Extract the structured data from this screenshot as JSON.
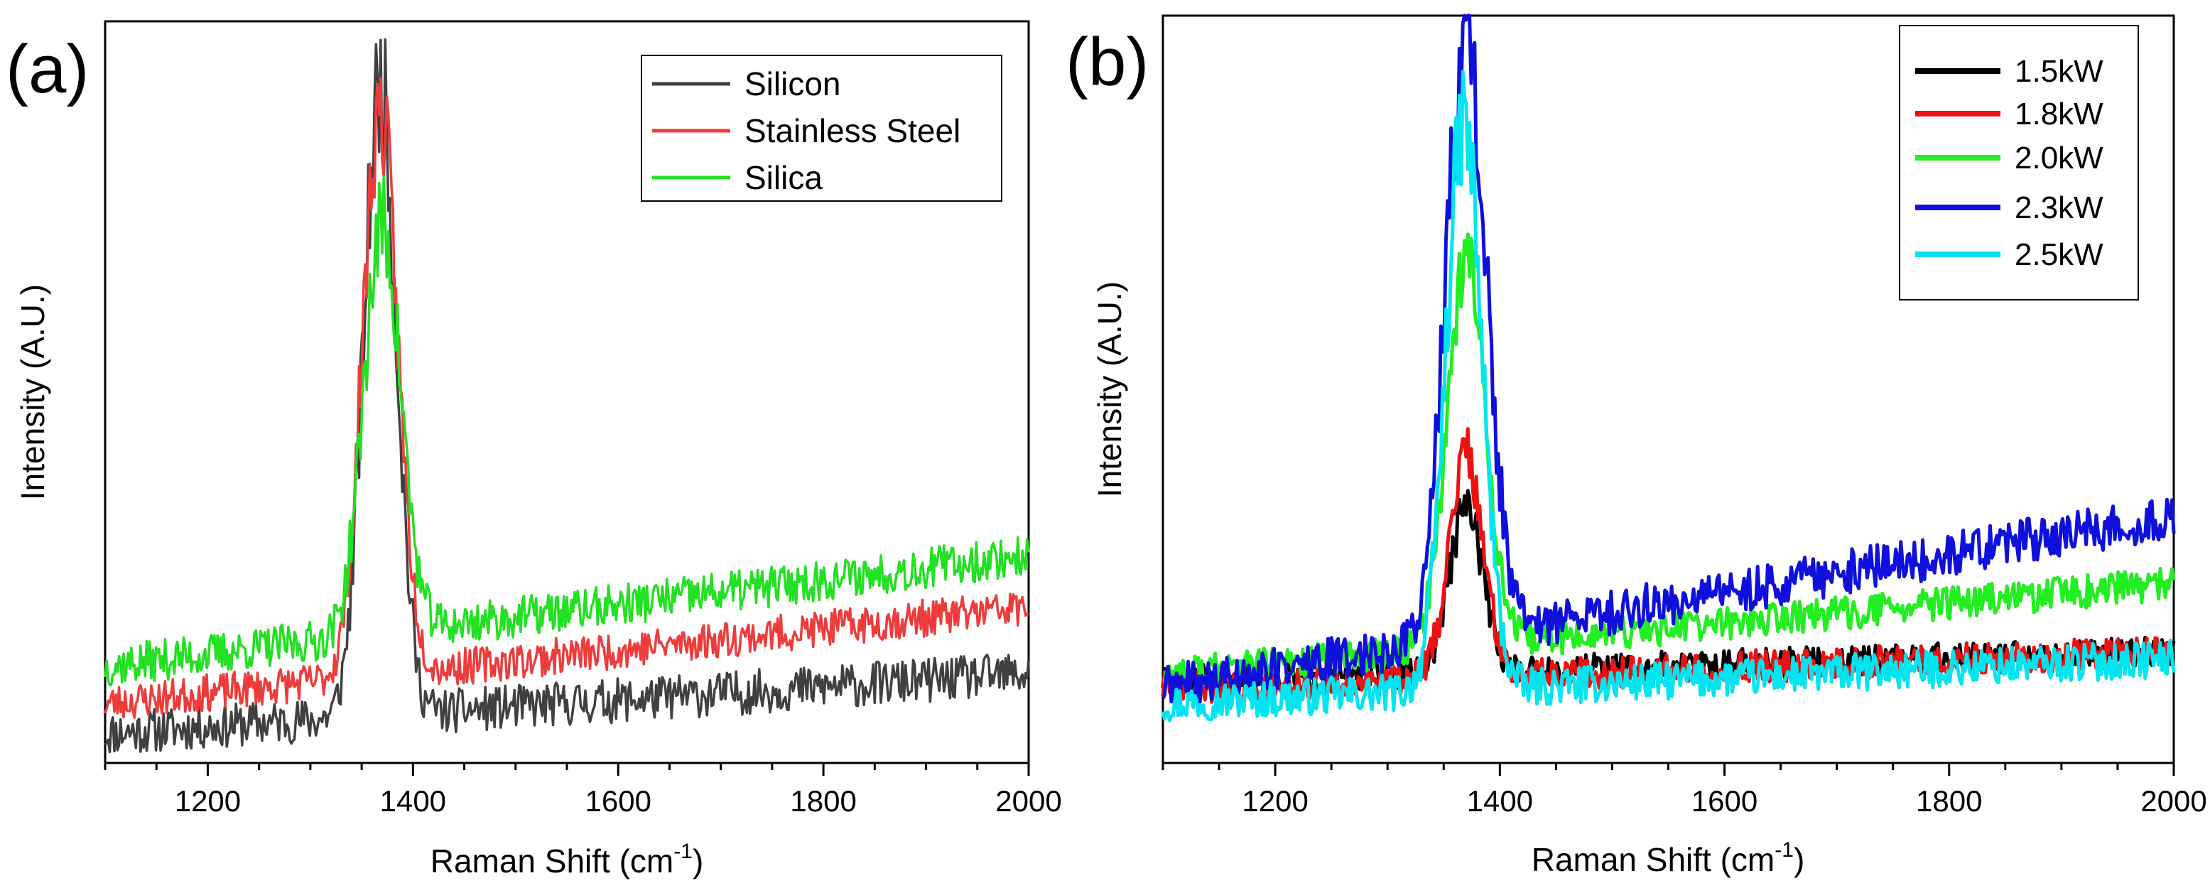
{
  "chart_data": [
    {
      "panel": "(a)",
      "type": "line",
      "title": "",
      "xlabel_main": "Raman Shift (cm",
      "xlabel_sup": "-1",
      "xlabel_end": ")",
      "ylabel": "Intensity (A.U.)",
      "xlim": [
        1100,
        2000
      ],
      "ylim": [
        0,
        1
      ],
      "xticks": [
        1200,
        1400,
        1600,
        1800,
        2000
      ],
      "legend_position": "top-right",
      "series": [
        {
          "name": "Silicon",
          "color": "#404040",
          "peak_center": 1368,
          "peak_width": 16,
          "peak_height": 0.85,
          "baseline_start": 0.04,
          "baseline_end": 0.12,
          "noise": 0.03,
          "seed": 11
        },
        {
          "name": "Stainless Steel",
          "color": "#ef3b3b",
          "peak_center": 1368,
          "peak_width": 17,
          "peak_height": 0.76,
          "baseline_start": 0.08,
          "baseline_end": 0.21,
          "noise": 0.025,
          "seed": 23
        },
        {
          "name": "Silica",
          "color": "#22e022",
          "peak_center": 1370,
          "peak_width": 18,
          "peak_height": 0.55,
          "baseline_start": 0.13,
          "baseline_end": 0.28,
          "noise": 0.028,
          "seed": 37
        }
      ]
    },
    {
      "panel": "(b)",
      "type": "line",
      "title": "",
      "xlabel_main": "Raman Shift (cm",
      "xlabel_sup": "-1",
      "xlabel_end": ")",
      "ylabel": "Intensity (A.U.)",
      "xlim": [
        1100,
        2000
      ],
      "ylim": [
        0,
        1
      ],
      "xticks": [
        1200,
        1400,
        1600,
        1800,
        2000
      ],
      "legend_position": "top-right",
      "series": [
        {
          "name": "1.5kW",
          "color": "#000000",
          "peak_center": 1370,
          "peak_width": 15,
          "peak_height": 0.22,
          "baseline_start": 0.11,
          "baseline_end": 0.15,
          "noise": 0.02,
          "seed": 51
        },
        {
          "name": "1.8kW",
          "color": "#ee1111",
          "peak_center": 1370,
          "peak_width": 15,
          "peak_height": 0.3,
          "baseline_start": 0.1,
          "baseline_end": 0.15,
          "noise": 0.022,
          "seed": 63
        },
        {
          "name": "2.0kW",
          "color": "#22ee22",
          "peak_center": 1370,
          "peak_width": 17,
          "peak_height": 0.52,
          "baseline_start": 0.12,
          "baseline_end": 0.24,
          "noise": 0.022,
          "seed": 77
        },
        {
          "name": "2.3kW",
          "color": "#1010dd",
          "peak_center": 1370,
          "peak_width": 18,
          "peak_height": 0.8,
          "baseline_start": 0.1,
          "baseline_end": 0.33,
          "noise": 0.03,
          "seed": 89
        },
        {
          "name": "2.5kW",
          "color": "#00e5f0",
          "peak_center": 1368,
          "peak_width": 16,
          "peak_height": 0.76,
          "baseline_start": 0.08,
          "baseline_end": 0.14,
          "noise": 0.025,
          "seed": 97
        }
      ]
    }
  ]
}
